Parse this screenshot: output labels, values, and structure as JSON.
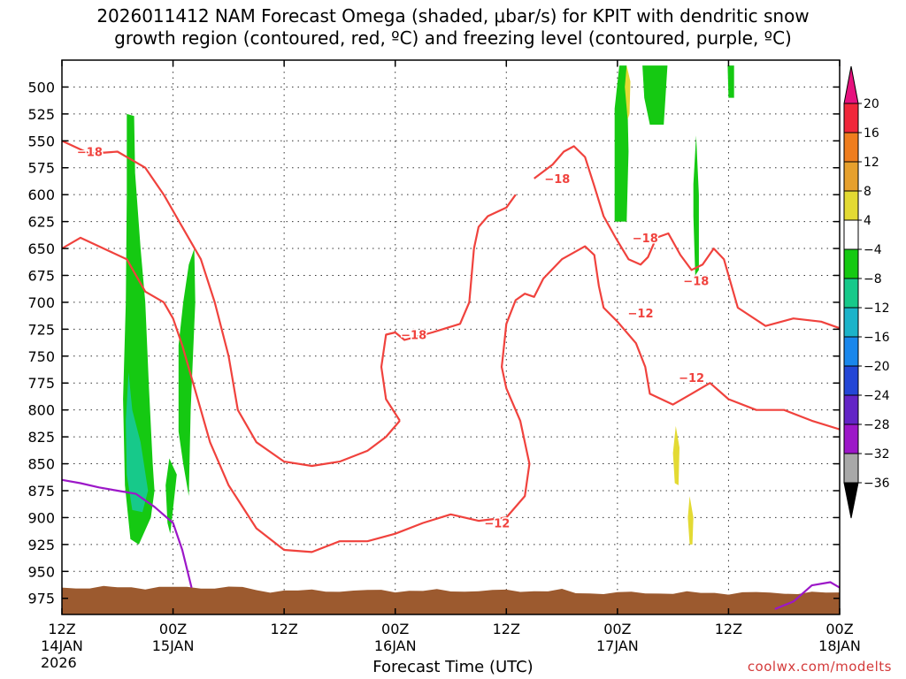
{
  "chart_data": {
    "type": "heatmap",
    "title_line1": "2026011412 NAM Forecast Omega (shaded, μbar/s) for KPIT with dendritic snow",
    "title_line2": "growth region (contoured, red, ºC) and freezing level (contoured, purple, ºC)",
    "xlabel": "Forecast Time (UTC)",
    "x_ticks": [
      {
        "hour": 0,
        "l1": "12Z",
        "l2": "14JAN"
      },
      {
        "hour": 12,
        "l1": "00Z",
        "l2": "15JAN"
      },
      {
        "hour": 24,
        "l1": "12Z",
        "l2": ""
      },
      {
        "hour": 36,
        "l1": "00Z",
        "l2": "16JAN"
      },
      {
        "hour": 48,
        "l1": "12Z",
        "l2": ""
      },
      {
        "hour": 60,
        "l1": "00Z",
        "l2": "17JAN"
      },
      {
        "hour": 72,
        "l1": "12Z",
        "l2": ""
      },
      {
        "hour": 84,
        "l1": "00Z",
        "l2": "18JAN"
      }
    ],
    "year_label": "2026",
    "xlim": [
      0,
      84
    ],
    "ylim": [
      475,
      990
    ],
    "y_ticks": [
      500,
      525,
      550,
      575,
      600,
      625,
      650,
      675,
      700,
      725,
      750,
      775,
      800,
      825,
      850,
      875,
      900,
      925,
      950,
      975
    ],
    "grid": true,
    "colorbar": {
      "levels": [
        "20",
        "16",
        "12",
        "8",
        "4",
        "−4",
        "−8",
        "−12",
        "−16",
        "−20",
        "−24",
        "−28",
        "−32",
        "−36"
      ],
      "colors": [
        "#f0263a",
        "#ef7d1e",
        "#e6a02d",
        "#e3da33",
        "#ffffff",
        "#15c912",
        "#17c98a",
        "#1cb3c9",
        "#1a87ec",
        "#2346d6",
        "#6324c6",
        "#9c17c8",
        "#a8a8a8"
      ],
      "top_color": "#e6127e",
      "bottom_color": "#000000"
    },
    "omega_regions": [
      {
        "name": "green-1",
        "color": "#15c912",
        "points": [
          [
            7.0,
            525
          ],
          [
            7.8,
            527
          ],
          [
            7.9,
            580
          ],
          [
            8.5,
            650
          ],
          [
            9.0,
            700
          ],
          [
            9.4,
            780
          ],
          [
            9.8,
            850
          ],
          [
            10.0,
            875
          ],
          [
            9.6,
            900
          ],
          [
            8.3,
            925
          ],
          [
            7.4,
            920
          ],
          [
            6.8,
            870
          ],
          [
            6.6,
            790
          ],
          [
            6.9,
            700
          ],
          [
            7.0,
            600
          ]
        ]
      },
      {
        "name": "teal-1",
        "color": "#17c98a",
        "points": [
          [
            7.2,
            765
          ],
          [
            7.6,
            800
          ],
          [
            8.5,
            830
          ],
          [
            9.3,
            875
          ],
          [
            8.7,
            895
          ],
          [
            7.6,
            893
          ],
          [
            7.0,
            860
          ],
          [
            6.9,
            810
          ]
        ]
      },
      {
        "name": "green-2",
        "color": "#15c912",
        "points": [
          [
            11.6,
            845
          ],
          [
            12.4,
            860
          ],
          [
            11.9,
            900
          ],
          [
            11.7,
            915
          ],
          [
            11.4,
            905
          ],
          [
            11.2,
            870
          ]
        ]
      },
      {
        "name": "green-3",
        "color": "#15c912",
        "points": [
          [
            13.7,
            665
          ],
          [
            14.3,
            650
          ],
          [
            14.4,
            700
          ],
          [
            13.9,
            800
          ],
          [
            13.7,
            880
          ],
          [
            13.1,
            850
          ],
          [
            12.6,
            820
          ],
          [
            12.6,
            740
          ],
          [
            13.1,
            700
          ]
        ]
      },
      {
        "name": "green-4",
        "color": "#15c912",
        "points": [
          [
            60.2,
            480
          ],
          [
            61.0,
            480
          ],
          [
            61.2,
            560
          ],
          [
            61.0,
            625
          ],
          [
            59.7,
            625
          ],
          [
            59.7,
            520
          ]
        ]
      },
      {
        "name": "green-5",
        "color": "#15c912",
        "points": [
          [
            62.7,
            480
          ],
          [
            65.4,
            480
          ],
          [
            65.0,
            535
          ],
          [
            63.5,
            535
          ],
          [
            62.9,
            510
          ]
        ]
      },
      {
        "name": "green-6",
        "color": "#15c912",
        "points": [
          [
            68.5,
            545
          ],
          [
            68.8,
            600
          ],
          [
            68.8,
            670
          ],
          [
            68.4,
            675
          ],
          [
            68.2,
            620
          ],
          [
            68.2,
            590
          ]
        ]
      },
      {
        "name": "green-7",
        "color": "#15c912",
        "points": [
          [
            71.9,
            480
          ],
          [
            72.6,
            480
          ],
          [
            72.6,
            510
          ],
          [
            72.0,
            510
          ]
        ]
      },
      {
        "name": "yellow-1",
        "color": "#e3da33",
        "points": [
          [
            61.0,
            480
          ],
          [
            61.4,
            495
          ],
          [
            61.3,
            525
          ],
          [
            61.1,
            530
          ],
          [
            60.8,
            500
          ]
        ]
      },
      {
        "name": "yellow-2",
        "color": "#e3da33",
        "points": [
          [
            66.3,
            815
          ],
          [
            66.7,
            835
          ],
          [
            66.6,
            870
          ],
          [
            66.2,
            868
          ],
          [
            66.0,
            840
          ]
        ]
      },
      {
        "name": "yellow-3",
        "color": "#e3da33",
        "points": [
          [
            67.8,
            880
          ],
          [
            68.2,
            900
          ],
          [
            68.1,
            925
          ],
          [
            67.8,
            925
          ],
          [
            67.6,
            900
          ]
        ]
      }
    ],
    "terrain": {
      "color": "#9c5a2f",
      "top_hpa": 965
    },
    "isotherms": [
      {
        "name": "minus-18-west",
        "value": -18,
        "color": "#f0423d",
        "points": [
          [
            0,
            550
          ],
          [
            3,
            562
          ],
          [
            6,
            560
          ],
          [
            9,
            575
          ],
          [
            11,
            600
          ],
          [
            13,
            630
          ],
          [
            15,
            660
          ],
          [
            16.5,
            700
          ],
          [
            18,
            750
          ],
          [
            19,
            800
          ],
          [
            21,
            830
          ],
          [
            24,
            848
          ],
          [
            27,
            852
          ],
          [
            30,
            848
          ],
          [
            33,
            838
          ],
          [
            35,
            825
          ],
          [
            36.5,
            810
          ]
        ]
      },
      {
        "name": "minus-18-mid",
        "value": -18,
        "color": "#f0423d",
        "points": [
          [
            36.5,
            810
          ],
          [
            35,
            790
          ],
          [
            34.5,
            760
          ],
          [
            35,
            730
          ],
          [
            36,
            728
          ],
          [
            37,
            735
          ],
          [
            40,
            728
          ],
          [
            43,
            720
          ],
          [
            44,
            700
          ],
          [
            44.5,
            650
          ],
          [
            45,
            630
          ],
          [
            46,
            620
          ],
          [
            48,
            612
          ],
          [
            49,
            600
          ]
        ]
      },
      {
        "name": "minus-18-east",
        "value": -18,
        "color": "#f0423d",
        "points": [
          [
            51,
            585
          ],
          [
            53,
            572
          ],
          [
            54.2,
            560
          ],
          [
            55.3,
            555
          ],
          [
            56.5,
            565
          ],
          [
            57.5,
            592
          ],
          [
            58.5,
            620
          ],
          [
            59.8,
            640
          ],
          [
            61.2,
            660
          ],
          [
            62.5,
            665
          ],
          [
            63.3,
            658
          ],
          [
            64.2,
            640
          ],
          [
            65.5,
            636
          ],
          [
            66.8,
            656
          ],
          [
            68,
            670
          ],
          [
            69.2,
            665
          ],
          [
            70.4,
            650
          ],
          [
            71.5,
            660
          ],
          [
            73,
            705
          ],
          [
            76,
            722
          ],
          [
            79,
            715
          ],
          [
            82,
            718
          ],
          [
            84,
            724
          ]
        ]
      },
      {
        "name": "minus-12-west",
        "value": -12,
        "color": "#f0423d",
        "points": [
          [
            0,
            650
          ],
          [
            2,
            640
          ],
          [
            5,
            652
          ],
          [
            7,
            660
          ],
          [
            9,
            690
          ],
          [
            11,
            700
          ],
          [
            12,
            715
          ],
          [
            13,
            740
          ],
          [
            14,
            770
          ],
          [
            15,
            800
          ],
          [
            16,
            830
          ],
          [
            18,
            870
          ],
          [
            21,
            910
          ],
          [
            24,
            930
          ],
          [
            27,
            932
          ],
          [
            30,
            922
          ],
          [
            33,
            922
          ],
          [
            36,
            915
          ],
          [
            39,
            905
          ],
          [
            42,
            897
          ],
          [
            45,
            903
          ],
          [
            48,
            900
          ],
          [
            50,
            880
          ],
          [
            50.5,
            850
          ],
          [
            49.5,
            810
          ],
          [
            48,
            780
          ],
          [
            47.5,
            760
          ],
          [
            48,
            720
          ],
          [
            49,
            698
          ],
          [
            50,
            692
          ],
          [
            51,
            695
          ],
          [
            52,
            678
          ],
          [
            54,
            660
          ],
          [
            56.5,
            648
          ],
          [
            57.5,
            656
          ],
          [
            58,
            685
          ],
          [
            58.5,
            705
          ],
          [
            60,
            718
          ],
          [
            62,
            738
          ],
          [
            63,
            760
          ],
          [
            63.5,
            785
          ],
          [
            66,
            795
          ],
          [
            68,
            785
          ],
          [
            70,
            775
          ],
          [
            72,
            790
          ],
          [
            75,
            800
          ],
          [
            78,
            800
          ],
          [
            81,
            810
          ],
          [
            84,
            818
          ]
        ]
      }
    ],
    "freezing_levels": [
      {
        "name": "freezing-level-west",
        "color": "#9c17c8",
        "points": [
          [
            0,
            865
          ],
          [
            2,
            868
          ],
          [
            4,
            872
          ],
          [
            6,
            875
          ],
          [
            8,
            878
          ],
          [
            10,
            890
          ],
          [
            12,
            905
          ],
          [
            13,
            930
          ],
          [
            14,
            965
          ]
        ]
      },
      {
        "name": "freezing-level-east",
        "color": "#9c17c8",
        "points": [
          [
            77,
            985
          ],
          [
            79,
            978
          ],
          [
            81,
            963
          ],
          [
            83,
            960
          ],
          [
            84,
            965
          ]
        ]
      }
    ],
    "contour_labels": [
      {
        "text": "−18",
        "hour": 3.0,
        "hpa": 560
      },
      {
        "text": "−18",
        "hour": 53.5,
        "hpa": 585
      },
      {
        "text": "−18",
        "hour": 63.0,
        "hpa": 640
      },
      {
        "text": "−18",
        "hour": 38.0,
        "hpa": 730
      },
      {
        "text": "−18",
        "hour": 68.5,
        "hpa": 680
      },
      {
        "text": "−12",
        "hour": 62.5,
        "hpa": 710
      },
      {
        "text": "−12",
        "hour": 68.0,
        "hpa": 770
      },
      {
        "text": "−12",
        "hour": 47.0,
        "hpa": 905
      }
    ]
  },
  "credit": "coolwx.com/modelts"
}
